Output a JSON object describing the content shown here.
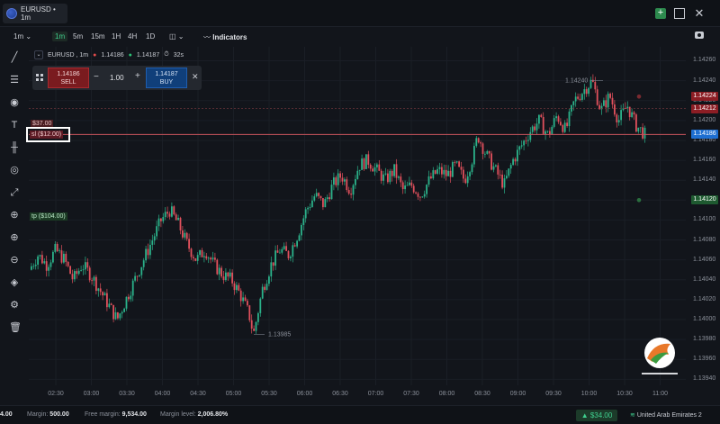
{
  "topbar": {
    "symbol_tab": "EURUSD • 1m"
  },
  "toolbar": {
    "interval_selected": "1m",
    "timeframes": [
      "1m",
      "5m",
      "15m",
      "1H",
      "4H",
      "1D"
    ],
    "indicators_label": "Indicators"
  },
  "chart_header": {
    "symbol": "EURUSD , 1m",
    "bid": "1.14186",
    "ask": "1.14187",
    "countdown": "32s"
  },
  "trade_panel": {
    "sell_price": "1.14186",
    "sell_label": "SELL",
    "buy_price": "1.14187",
    "buy_label": "BUY",
    "quantity": "1.00",
    "minus": "−",
    "plus": "+",
    "close": "✕"
  },
  "orders": {
    "upper_label": "$37.00",
    "sl_label": "sl ($12.00)",
    "tp_label": "tp ($104.00)"
  },
  "chart_data": {
    "type": "candlestick",
    "price_axis_ticks": [
      "1.14260",
      "1.14240",
      "1.14220",
      "1.14200",
      "1.14180",
      "1.14160",
      "1.14140",
      "1.14120",
      "1.14100",
      "1.14080",
      "1.14060",
      "1.14040",
      "1.14020",
      "1.14000",
      "1.13980",
      "1.13960",
      "1.13940"
    ],
    "price_axis_range": [
      1.13934,
      1.14274
    ],
    "time_axis_ticks": [
      "02:30",
      "03:00",
      "03:30",
      "04:00",
      "04:30",
      "05:00",
      "05:30",
      "06:00",
      "06:30",
      "07:00",
      "07:30",
      "08:00",
      "08:30",
      "09:00",
      "09:30",
      "10:00",
      "10:30",
      "11:00"
    ],
    "annotations": {
      "high_label": "1.14240",
      "low_label": "1.13985"
    },
    "price_badges": [
      {
        "text": "1.14224",
        "price": 1.14224,
        "color": "#8c1d24"
      },
      {
        "text": "1.14212",
        "price": 1.14212,
        "color": "#8c1d24"
      },
      {
        "text": "1.14186",
        "price": 1.14186,
        "color": "#1e6fd1"
      },
      {
        "text": "1.14120",
        "price": 1.1412,
        "color": "#1e5a30"
      }
    ],
    "path_points": [
      [
        0,
        1.1405
      ],
      [
        4,
        1.14065
      ],
      [
        8,
        1.14055
      ],
      [
        12,
        1.1407
      ],
      [
        16,
        1.1406
      ],
      [
        20,
        1.1404
      ],
      [
        24,
        1.14055
      ],
      [
        28,
        1.14045
      ],
      [
        32,
        1.1403
      ],
      [
        36,
        1.14015
      ],
      [
        40,
        1.14
      ],
      [
        44,
        1.1402
      ],
      [
        48,
        1.1404
      ],
      [
        52,
        1.1406
      ],
      [
        56,
        1.1408
      ],
      [
        60,
        1.141
      ],
      [
        64,
        1.1411
      ],
      [
        68,
        1.14095
      ],
      [
        72,
        1.14075
      ],
      [
        76,
        1.1406
      ],
      [
        80,
        1.1407
      ],
      [
        84,
        1.14055
      ],
      [
        88,
        1.14045
      ],
      [
        92,
        1.1404
      ],
      [
        96,
        1.14025
      ],
      [
        100,
        1.14005
      ],
      [
        102,
        1.13985
      ],
      [
        106,
        1.1403
      ],
      [
        110,
        1.14055
      ],
      [
        114,
        1.1407
      ],
      [
        118,
        1.14065
      ],
      [
        122,
        1.14085
      ],
      [
        126,
        1.1411
      ],
      [
        130,
        1.14125
      ],
      [
        134,
        1.14115
      ],
      [
        138,
        1.14135
      ],
      [
        142,
        1.14145
      ],
      [
        146,
        1.1413
      ],
      [
        150,
        1.14155
      ],
      [
        154,
        1.1416
      ],
      [
        158,
        1.1415
      ],
      [
        162,
        1.1414
      ],
      [
        166,
        1.1415
      ],
      [
        170,
        1.1413
      ],
      [
        174,
        1.14135
      ],
      [
        178,
        1.14125
      ],
      [
        182,
        1.1414
      ],
      [
        186,
        1.1415
      ],
      [
        190,
        1.14145
      ],
      [
        194,
        1.14155
      ],
      [
        198,
        1.1414
      ],
      [
        202,
        1.14165
      ],
      [
        204,
        1.14185
      ],
      [
        208,
        1.14165
      ],
      [
        212,
        1.1415
      ],
      [
        216,
        1.14135
      ],
      [
        220,
        1.1416
      ],
      [
        224,
        1.14175
      ],
      [
        228,
        1.1419
      ],
      [
        232,
        1.142
      ],
      [
        236,
        1.14185
      ],
      [
        240,
        1.14205
      ],
      [
        244,
        1.1419
      ],
      [
        248,
        1.1422
      ],
      [
        252,
        1.1423
      ],
      [
        256,
        1.1424
      ],
      [
        260,
        1.1421
      ],
      [
        264,
        1.14225
      ],
      [
        268,
        1.142
      ],
      [
        272,
        1.14215
      ],
      [
        276,
        1.14195
      ],
      [
        280,
        1.14186
      ]
    ],
    "sl_price": 1.14212,
    "current_price": 1.14186,
    "tp_price": 1.1412
  },
  "statusbar": {
    "balance_value": "4.00",
    "margin_label": "Margin:",
    "margin_value": "500.00",
    "free_margin_label": "Free margin:",
    "free_margin_value": "9,534.00",
    "margin_level_label": "Margin level:",
    "margin_level_value": "2,006.80%",
    "equity_value": "$34.00",
    "region": "United Arab Emirates 2"
  },
  "colors": {
    "bg": "#12151b",
    "up": "#2bb28a",
    "down": "#e0505c",
    "sl_line": "#c9545c"
  }
}
